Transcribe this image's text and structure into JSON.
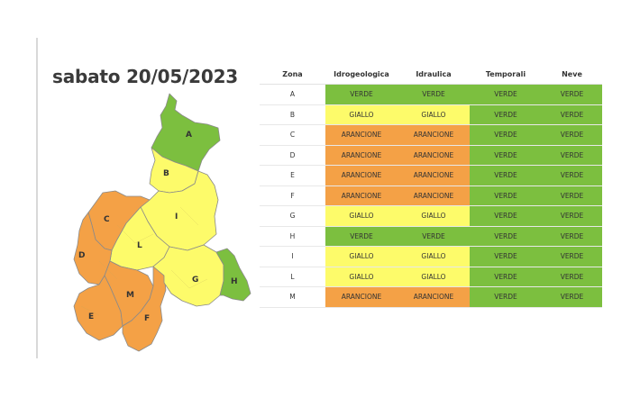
{
  "title": "sabato 20/05/2023",
  "colors": {
    "VERDE": "#7cbf3f",
    "GIALLO": "#fdfb6a",
    "ARANCIONE": "#f4a146"
  },
  "map": {
    "zones": [
      {
        "label": "A",
        "level": "VERDE"
      },
      {
        "label": "B",
        "level": "GIALLO"
      },
      {
        "label": "C",
        "level": "ARANCIONE"
      },
      {
        "label": "D",
        "level": "ARANCIONE"
      },
      {
        "label": "E",
        "level": "ARANCIONE"
      },
      {
        "label": "F",
        "level": "ARANCIONE"
      },
      {
        "label": "G",
        "level": "GIALLO"
      },
      {
        "label": "H",
        "level": "VERDE"
      },
      {
        "label": "I",
        "level": "GIALLO"
      },
      {
        "label": "L",
        "level": "GIALLO"
      },
      {
        "label": "M",
        "level": "ARANCIONE"
      }
    ]
  },
  "table": {
    "headers": [
      "Zona",
      "Idrogeologica",
      "Idraulica",
      "Temporali",
      "Neve"
    ],
    "rows": [
      [
        "A",
        "VERDE",
        "VERDE",
        "VERDE",
        "VERDE"
      ],
      [
        "B",
        "GIALLO",
        "GIALLO",
        "VERDE",
        "VERDE"
      ],
      [
        "C",
        "ARANCIONE",
        "ARANCIONE",
        "VERDE",
        "VERDE"
      ],
      [
        "D",
        "ARANCIONE",
        "ARANCIONE",
        "VERDE",
        "VERDE"
      ],
      [
        "E",
        "ARANCIONE",
        "ARANCIONE",
        "VERDE",
        "VERDE"
      ],
      [
        "F",
        "ARANCIONE",
        "ARANCIONE",
        "VERDE",
        "VERDE"
      ],
      [
        "G",
        "GIALLO",
        "GIALLO",
        "VERDE",
        "VERDE"
      ],
      [
        "H",
        "VERDE",
        "VERDE",
        "VERDE",
        "VERDE"
      ],
      [
        "I",
        "GIALLO",
        "GIALLO",
        "VERDE",
        "VERDE"
      ],
      [
        "L",
        "GIALLO",
        "GIALLO",
        "VERDE",
        "VERDE"
      ],
      [
        "M",
        "ARANCIONE",
        "ARANCIONE",
        "VERDE",
        "VERDE"
      ]
    ]
  }
}
